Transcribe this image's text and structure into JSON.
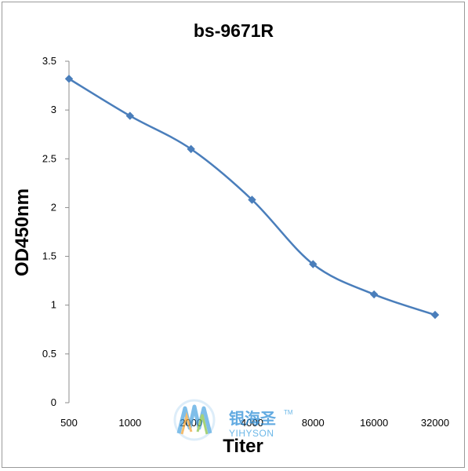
{
  "chart_data": {
    "type": "line",
    "title": "bs-9671R",
    "xlabel": "Titer",
    "ylabel": "OD450nm",
    "categories": [
      "500",
      "1000",
      "2000",
      "4000",
      "8000",
      "16000",
      "32000"
    ],
    "series": [
      {
        "values": [
          3.32,
          2.94,
          2.6,
          2.08,
          1.42,
          1.11,
          0.9
        ]
      }
    ],
    "ylim": [
      0,
      3.5
    ],
    "yticks": [
      "0",
      "0.5",
      "1",
      "1.5",
      "2",
      "2.5",
      "3",
      "3.5"
    ],
    "line_color": "#4a7ebb",
    "grid": false,
    "legend": "none"
  },
  "watermark": {
    "name_cn": "银海圣",
    "name_en": "YIHYSON",
    "tm": "TM"
  }
}
